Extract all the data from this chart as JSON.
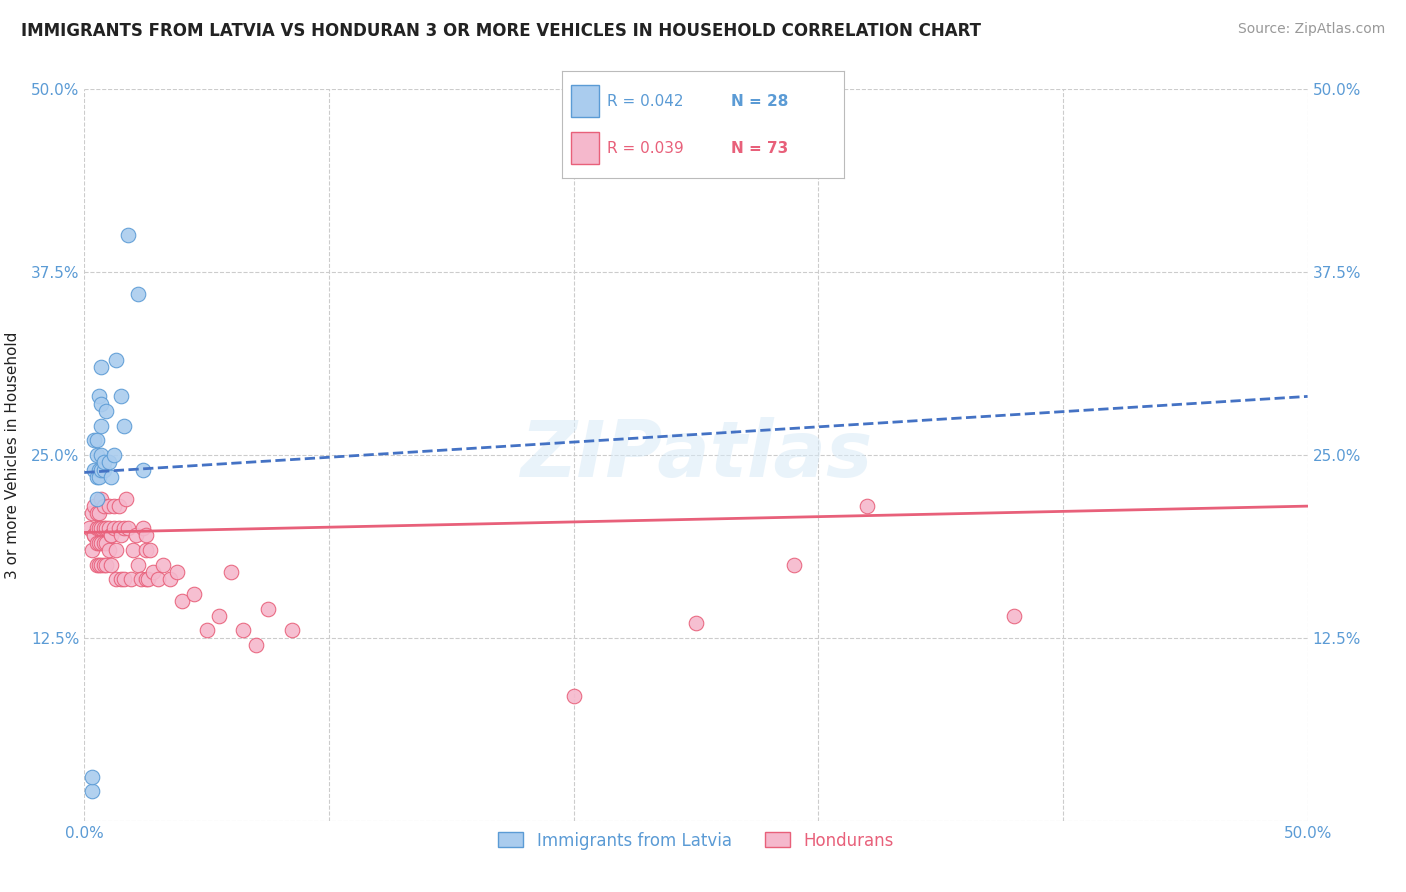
{
  "title": "IMMIGRANTS FROM LATVIA VS HONDURAN 3 OR MORE VEHICLES IN HOUSEHOLD CORRELATION CHART",
  "source": "Source: ZipAtlas.com",
  "ylabel": "3 or more Vehicles in Household",
  "xticklabels": [
    "0.0%",
    "",
    "",
    "",
    "",
    "50.0%"
  ],
  "yticklabels": [
    "",
    "12.5%",
    "25.0%",
    "37.5%",
    "50.0%"
  ],
  "xlim": [
    0.0,
    0.5
  ],
  "ylim": [
    0.0,
    0.5
  ],
  "title_color": "#222222",
  "source_color": "#999999",
  "tick_color": "#5b9bd5",
  "grid_color": "#cccccc",
  "background_color": "#ffffff",
  "legend_r1": "R = 0.042",
  "legend_n1": "N = 28",
  "legend_r2": "R = 0.039",
  "legend_n2": "N = 73",
  "legend_label1": "Immigrants from Latvia",
  "legend_label2": "Hondurans",
  "scatter_color1": "#aaccee",
  "scatter_color2": "#f5b8cc",
  "scatter_edge_color1": "#5b9bd5",
  "scatter_edge_color2": "#e8607a",
  "line_color1": "#4472c4",
  "line_color2": "#e8607a",
  "watermark": "ZIPatlas",
  "latvia_x": [
    0.003,
    0.003,
    0.004,
    0.004,
    0.005,
    0.005,
    0.005,
    0.005,
    0.006,
    0.006,
    0.006,
    0.007,
    0.007,
    0.007,
    0.007,
    0.007,
    0.008,
    0.008,
    0.009,
    0.01,
    0.011,
    0.012,
    0.013,
    0.015,
    0.016,
    0.018,
    0.022,
    0.024
  ],
  "latvia_y": [
    0.02,
    0.03,
    0.24,
    0.26,
    0.235,
    0.25,
    0.26,
    0.22,
    0.24,
    0.235,
    0.29,
    0.25,
    0.24,
    0.31,
    0.285,
    0.27,
    0.24,
    0.245,
    0.28,
    0.245,
    0.235,
    0.25,
    0.315,
    0.29,
    0.27,
    0.4,
    0.36,
    0.24
  ],
  "honduran_x": [
    0.002,
    0.003,
    0.003,
    0.004,
    0.004,
    0.004,
    0.005,
    0.005,
    0.005,
    0.005,
    0.006,
    0.006,
    0.006,
    0.006,
    0.007,
    0.007,
    0.007,
    0.007,
    0.008,
    0.008,
    0.008,
    0.008,
    0.009,
    0.009,
    0.009,
    0.01,
    0.01,
    0.01,
    0.011,
    0.011,
    0.011,
    0.012,
    0.012,
    0.013,
    0.013,
    0.014,
    0.014,
    0.015,
    0.015,
    0.016,
    0.016,
    0.017,
    0.018,
    0.019,
    0.02,
    0.021,
    0.022,
    0.023,
    0.024,
    0.025,
    0.025,
    0.025,
    0.026,
    0.027,
    0.028,
    0.03,
    0.032,
    0.035,
    0.038,
    0.04,
    0.045,
    0.05,
    0.055,
    0.06,
    0.065,
    0.07,
    0.075,
    0.085,
    0.2,
    0.25,
    0.29,
    0.32,
    0.38
  ],
  "honduran_y": [
    0.2,
    0.21,
    0.185,
    0.195,
    0.215,
    0.195,
    0.21,
    0.2,
    0.19,
    0.175,
    0.21,
    0.2,
    0.19,
    0.175,
    0.22,
    0.2,
    0.19,
    0.175,
    0.2,
    0.215,
    0.19,
    0.175,
    0.2,
    0.19,
    0.175,
    0.215,
    0.2,
    0.185,
    0.195,
    0.175,
    0.195,
    0.2,
    0.215,
    0.185,
    0.165,
    0.2,
    0.215,
    0.165,
    0.195,
    0.2,
    0.165,
    0.22,
    0.2,
    0.165,
    0.185,
    0.195,
    0.175,
    0.165,
    0.2,
    0.165,
    0.185,
    0.195,
    0.165,
    0.185,
    0.17,
    0.165,
    0.175,
    0.165,
    0.17,
    0.15,
    0.155,
    0.13,
    0.14,
    0.17,
    0.13,
    0.12,
    0.145,
    0.13,
    0.085,
    0.135,
    0.175,
    0.215,
    0.14
  ],
  "trend_latvia_x0": 0.0,
  "trend_latvia_y0": 0.238,
  "trend_latvia_x1": 0.5,
  "trend_latvia_y1": 0.29,
  "trend_honduran_x0": 0.0,
  "trend_honduran_y0": 0.197,
  "trend_honduran_x1": 0.5,
  "trend_honduran_y1": 0.215
}
